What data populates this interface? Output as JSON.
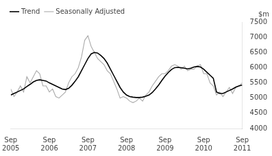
{
  "chart_data": {
    "type": "line",
    "ylabel": "$m",
    "x": [
      0,
      1,
      2,
      3,
      4,
      5,
      6,
      7,
      8,
      9,
      10,
      11,
      12,
      13,
      14,
      15,
      16,
      17,
      18,
      19,
      20,
      21,
      22,
      23,
      24,
      25,
      26,
      27,
      28,
      29,
      30,
      31,
      32,
      33,
      34,
      35,
      36,
      37,
      38,
      39,
      40,
      41,
      42,
      43,
      44,
      45,
      46,
      47,
      48,
      49,
      50,
      51,
      52,
      53,
      54,
      55,
      56,
      57,
      58,
      59,
      60,
      61,
      62,
      63,
      64,
      65,
      66,
      67,
      68,
      69,
      70,
      71,
      72
    ],
    "series": [
      {
        "name": "Trend",
        "color": "#000000",
        "values": [
          5100,
          5150,
          5200,
          5250,
          5300,
          5380,
          5450,
          5530,
          5580,
          5600,
          5580,
          5560,
          5500,
          5450,
          5400,
          5350,
          5300,
          5280,
          5320,
          5420,
          5550,
          5700,
          5900,
          6100,
          6300,
          6450,
          6500,
          6480,
          6400,
          6300,
          6150,
          5950,
          5750,
          5550,
          5350,
          5200,
          5100,
          5050,
          5030,
          5020,
          5020,
          5030,
          5060,
          5100,
          5180,
          5300,
          5430,
          5580,
          5720,
          5840,
          5940,
          6000,
          6010,
          6000,
          5980,
          5960,
          5980,
          6020,
          6040,
          6020,
          5950,
          5850,
          5750,
          5650,
          5200,
          5150,
          5150,
          5200,
          5250,
          5300,
          5360,
          5400,
          5430
        ]
      },
      {
        "name": "Seasonally Adjusted",
        "color": "#aaaaaa",
        "values": [
          5300,
          5050,
          5200,
          5400,
          5200,
          5700,
          5500,
          5700,
          5900,
          5800,
          5400,
          5400,
          5200,
          5300,
          5050,
          5000,
          5100,
          5200,
          5500,
          5700,
          5800,
          6000,
          6350,
          6900,
          7050,
          6700,
          6500,
          6300,
          6200,
          6100,
          5900,
          5800,
          5550,
          5300,
          5000,
          5050,
          5000,
          4900,
          4850,
          4900,
          5000,
          4900,
          5100,
          5200,
          5400,
          5550,
          5700,
          5800,
          5800,
          5900,
          6050,
          6100,
          6050,
          5950,
          6050,
          5900,
          5950,
          5950,
          6050,
          6100,
          5800,
          5800,
          5500,
          5400,
          5100,
          5200,
          5050,
          5200,
          5350,
          5150,
          5350,
          5400,
          5500
        ]
      }
    ],
    "xlim": [
      0,
      72
    ],
    "xticks": [
      {
        "value": 0,
        "label": "Sep\n2005"
      },
      {
        "value": 12,
        "label": "Sep\n2006"
      },
      {
        "value": 24,
        "label": "Sep\n2007"
      },
      {
        "value": 36,
        "label": "Sep\n2008"
      },
      {
        "value": 48,
        "label": "Sep\n2009"
      },
      {
        "value": 60,
        "label": "Sep\n2010"
      },
      {
        "value": 72,
        "label": "Sep\n2011"
      }
    ],
    "ylim": [
      4000,
      7500
    ],
    "yticks": [
      4000,
      4500,
      5000,
      5500,
      6000,
      6500,
      7000,
      7500
    ],
    "grid": false,
    "legend": "upper left"
  }
}
